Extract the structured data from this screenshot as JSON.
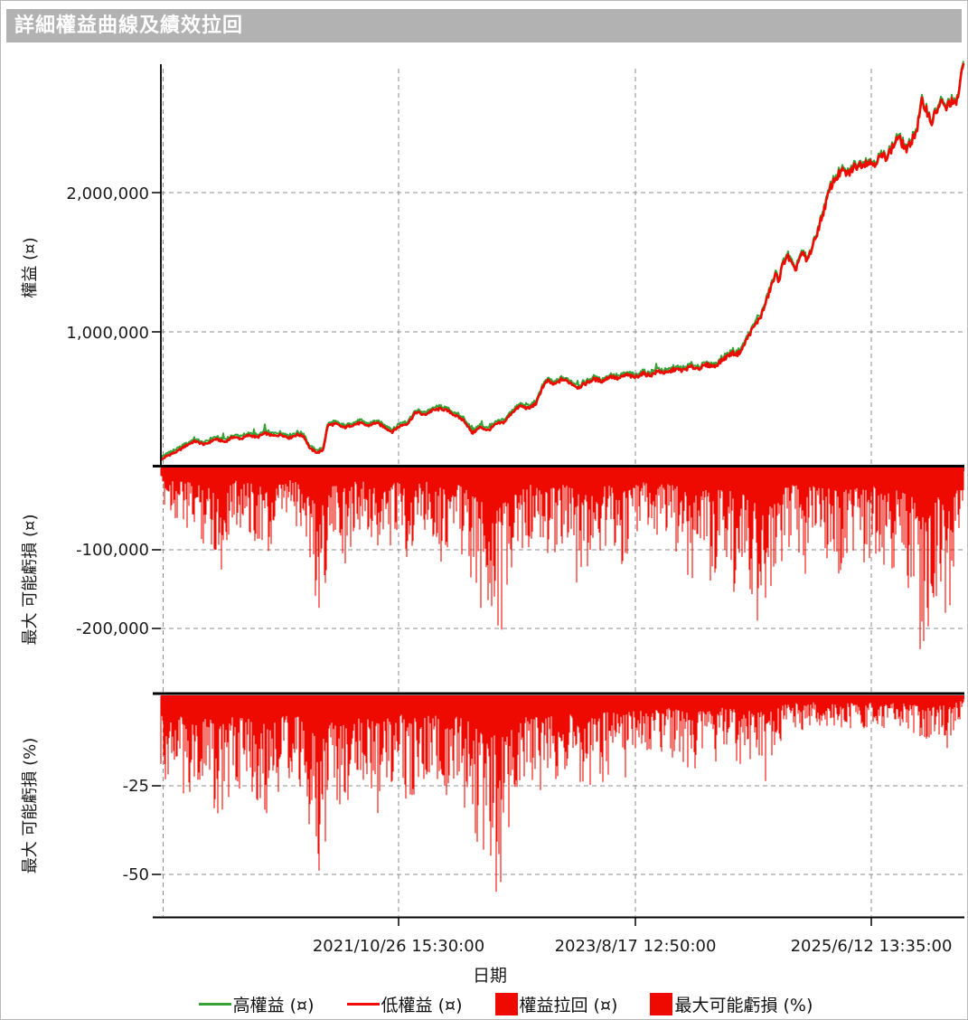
{
  "window": {
    "title": "詳細權益曲線及績效拉回"
  },
  "colors": {
    "red": "#ee0a00",
    "green": "#37a337",
    "grid": "#8c8c8c",
    "axis": "#000000",
    "titlebar_bg": "#b2b2b2",
    "titlebar_text": "#ffffff"
  },
  "chart_data": {
    "type": "area",
    "title": "詳細權益曲線及績效拉回",
    "xlabel": "日期",
    "grid": "dashed",
    "legend_position": "bottom",
    "xticks": [
      {
        "t": 0.296,
        "label": "2021/10/26 15:30:00"
      },
      {
        "t": 0.591,
        "label": "2023/8/17 12:50:00"
      },
      {
        "t": 0.885,
        "label": "2025/6/12 13:35:00"
      }
    ],
    "panels": [
      {
        "id": "equity",
        "type": "line",
        "ylabel": "權益 (¤)",
        "ylim": [
          0,
          2950000
        ],
        "yticks": [
          {
            "value": 2000000,
            "label": "2,000,000"
          },
          {
            "value": 1000000,
            "label": "1,000,000"
          }
        ],
        "series": [
          {
            "name": "高權益 (¤)",
            "color": "#37a337"
          },
          {
            "name": "低權益 (¤)",
            "color": "#ee0a00"
          }
        ],
        "anchors": [
          [
            0.0,
            80000
          ],
          [
            0.008,
            110000
          ],
          [
            0.02,
            140000
          ],
          [
            0.032,
            185000
          ],
          [
            0.042,
            215000
          ],
          [
            0.055,
            190000
          ],
          [
            0.068,
            230000
          ],
          [
            0.08,
            210000
          ],
          [
            0.09,
            245000
          ],
          [
            0.1,
            232000
          ],
          [
            0.11,
            258000
          ],
          [
            0.12,
            242000
          ],
          [
            0.13,
            272000
          ],
          [
            0.14,
            252000
          ],
          [
            0.15,
            262000
          ],
          [
            0.16,
            238000
          ],
          [
            0.17,
            262000
          ],
          [
            0.178,
            250000
          ],
          [
            0.186,
            160000
          ],
          [
            0.195,
            132000
          ],
          [
            0.202,
            150000
          ],
          [
            0.208,
            330000
          ],
          [
            0.218,
            338000
          ],
          [
            0.228,
            312000
          ],
          [
            0.238,
            330000
          ],
          [
            0.248,
            345000
          ],
          [
            0.258,
            325000
          ],
          [
            0.268,
            348000
          ],
          [
            0.278,
            318000
          ],
          [
            0.288,
            282000
          ],
          [
            0.298,
            325000
          ],
          [
            0.308,
            345000
          ],
          [
            0.318,
            425000
          ],
          [
            0.328,
            402000
          ],
          [
            0.338,
            435000
          ],
          [
            0.35,
            448000
          ],
          [
            0.36,
            425000
          ],
          [
            0.368,
            395000
          ],
          [
            0.378,
            362000
          ],
          [
            0.388,
            272000
          ],
          [
            0.398,
            315000
          ],
          [
            0.408,
            292000
          ],
          [
            0.418,
            338000
          ],
          [
            0.428,
            352000
          ],
          [
            0.438,
            425000
          ],
          [
            0.448,
            468000
          ],
          [
            0.458,
            448000
          ],
          [
            0.468,
            488000
          ],
          [
            0.475,
            600000
          ],
          [
            0.482,
            648000
          ],
          [
            0.49,
            620000
          ],
          [
            0.5,
            660000
          ],
          [
            0.51,
            635000
          ],
          [
            0.52,
            600000
          ],
          [
            0.53,
            632000
          ],
          [
            0.54,
            660000
          ],
          [
            0.55,
            645000
          ],
          [
            0.56,
            682000
          ],
          [
            0.57,
            662000
          ],
          [
            0.58,
            692000
          ],
          [
            0.59,
            672000
          ],
          [
            0.6,
            700000
          ],
          [
            0.61,
            688000
          ],
          [
            0.62,
            718000
          ],
          [
            0.63,
            702000
          ],
          [
            0.64,
            732000
          ],
          [
            0.65,
            722000
          ],
          [
            0.66,
            748000
          ],
          [
            0.67,
            738000
          ],
          [
            0.68,
            762000
          ],
          [
            0.69,
            752000
          ],
          [
            0.7,
            800000
          ],
          [
            0.706,
            825000
          ],
          [
            0.712,
            848000
          ],
          [
            0.718,
            838000
          ],
          [
            0.724,
            872000
          ],
          [
            0.73,
            948000
          ],
          [
            0.736,
            1010000
          ],
          [
            0.742,
            1062000
          ],
          [
            0.748,
            1118000
          ],
          [
            0.754,
            1212000
          ],
          [
            0.76,
            1322000
          ],
          [
            0.766,
            1408000
          ],
          [
            0.77,
            1372000
          ],
          [
            0.775,
            1482000
          ],
          [
            0.78,
            1552000
          ],
          [
            0.785,
            1498000
          ],
          [
            0.79,
            1432000
          ],
          [
            0.795,
            1522000
          ],
          [
            0.8,
            1562000
          ],
          [
            0.805,
            1505000
          ],
          [
            0.81,
            1585000
          ],
          [
            0.815,
            1658000
          ],
          [
            0.82,
            1758000
          ],
          [
            0.825,
            1852000
          ],
          [
            0.83,
            1952000
          ],
          [
            0.835,
            2048000
          ],
          [
            0.84,
            2098000
          ],
          [
            0.848,
            2152000
          ],
          [
            0.856,
            2132000
          ],
          [
            0.864,
            2185000
          ],
          [
            0.872,
            2205000
          ],
          [
            0.88,
            2222000
          ],
          [
            0.888,
            2208000
          ],
          [
            0.896,
            2252000
          ],
          [
            0.904,
            2262000
          ],
          [
            0.912,
            2325000
          ],
          [
            0.918,
            2398000
          ],
          [
            0.924,
            2352000
          ],
          [
            0.93,
            2302000
          ],
          [
            0.936,
            2385000
          ],
          [
            0.942,
            2452000
          ],
          [
            0.948,
            2648000
          ],
          [
            0.954,
            2598000
          ],
          [
            0.96,
            2502000
          ],
          [
            0.966,
            2582000
          ],
          [
            0.972,
            2648000
          ],
          [
            0.978,
            2602000
          ],
          [
            0.984,
            2655000
          ],
          [
            0.99,
            2622000
          ],
          [
            0.994,
            2718000
          ],
          [
            0.997,
            2820000
          ],
          [
            1.0,
            2920000
          ]
        ]
      },
      {
        "id": "drawdown_currency",
        "type": "area",
        "ylabel": "最大 可能虧損 (¤)",
        "ylim": [
          -290000,
          0
        ],
        "yticks": [
          {
            "value": -100000,
            "label": "-100,000"
          },
          {
            "value": -200000,
            "label": "-200,000"
          }
        ],
        "series_name": "權益拉回 (¤)",
        "color": "#ee0a00",
        "envelope": [
          [
            0.0,
            45000
          ],
          [
            0.02,
            70000
          ],
          [
            0.04,
            88000
          ],
          [
            0.06,
            105000
          ],
          [
            0.075,
            135000
          ],
          [
            0.09,
            70000
          ],
          [
            0.105,
            85000
          ],
          [
            0.12,
            95000
          ],
          [
            0.135,
            145000
          ],
          [
            0.15,
            85000
          ],
          [
            0.165,
            65000
          ],
          [
            0.18,
            90000
          ],
          [
            0.19,
            165000
          ],
          [
            0.197,
            225000
          ],
          [
            0.205,
            150000
          ],
          [
            0.215,
            100000
          ],
          [
            0.23,
            115000
          ],
          [
            0.245,
            65000
          ],
          [
            0.26,
            85000
          ],
          [
            0.272,
            140000
          ],
          [
            0.285,
            95000
          ],
          [
            0.3,
            80000
          ],
          [
            0.31,
            135000
          ],
          [
            0.325,
            75000
          ],
          [
            0.34,
            90000
          ],
          [
            0.355,
            115000
          ],
          [
            0.37,
            95000
          ],
          [
            0.385,
            140000
          ],
          [
            0.395,
            180000
          ],
          [
            0.405,
            210000
          ],
          [
            0.415,
            175000
          ],
          [
            0.418,
            228000
          ],
          [
            0.43,
            195000
          ],
          [
            0.44,
            160000
          ],
          [
            0.45,
            120000
          ],
          [
            0.46,
            95000
          ],
          [
            0.475,
            130000
          ],
          [
            0.49,
            110000
          ],
          [
            0.505,
            90000
          ],
          [
            0.52,
            140000
          ],
          [
            0.53,
            155000
          ],
          [
            0.545,
            120000
          ],
          [
            0.56,
            95000
          ],
          [
            0.575,
            130000
          ],
          [
            0.59,
            100000
          ],
          [
            0.6,
            75000
          ],
          [
            0.615,
            105000
          ],
          [
            0.63,
            85000
          ],
          [
            0.645,
            110000
          ],
          [
            0.66,
            150000
          ],
          [
            0.675,
            110000
          ],
          [
            0.69,
            135000
          ],
          [
            0.7,
            115000
          ],
          [
            0.715,
            140000
          ],
          [
            0.73,
            160000
          ],
          [
            0.745,
            200000
          ],
          [
            0.755,
            245000
          ],
          [
            0.765,
            185000
          ],
          [
            0.775,
            120000
          ],
          [
            0.79,
            95000
          ],
          [
            0.8,
            125000
          ],
          [
            0.815,
            95000
          ],
          [
            0.83,
            115000
          ],
          [
            0.845,
            135000
          ],
          [
            0.86,
            105000
          ],
          [
            0.875,
            125000
          ],
          [
            0.89,
            105000
          ],
          [
            0.9,
            145000
          ],
          [
            0.915,
            125000
          ],
          [
            0.93,
            150000
          ],
          [
            0.945,
            195000
          ],
          [
            0.955,
            272000
          ],
          [
            0.965,
            160000
          ],
          [
            0.975,
            185000
          ],
          [
            0.982,
            250000
          ],
          [
            0.99,
            120000
          ],
          [
            1.0,
            70000
          ]
        ]
      },
      {
        "id": "drawdown_percent",
        "type": "area",
        "ylabel": "最大 可能虧損 (%)",
        "ylim": [
          -61,
          0
        ],
        "yticks": [
          {
            "value": -25,
            "label": "-25"
          },
          {
            "value": -50,
            "label": "-50"
          }
        ],
        "series_name": "最大可能虧損 (%)",
        "color": "#ee0a00",
        "envelope": [
          [
            0.0,
            26
          ],
          [
            0.015,
            20
          ],
          [
            0.03,
            30
          ],
          [
            0.05,
            24
          ],
          [
            0.065,
            32
          ],
          [
            0.078,
            36
          ],
          [
            0.09,
            24
          ],
          [
            0.105,
            28
          ],
          [
            0.12,
            30
          ],
          [
            0.135,
            39
          ],
          [
            0.15,
            27
          ],
          [
            0.165,
            23
          ],
          [
            0.18,
            30
          ],
          [
            0.19,
            45
          ],
          [
            0.197,
            52
          ],
          [
            0.205,
            42
          ],
          [
            0.215,
            32
          ],
          [
            0.23,
            34
          ],
          [
            0.245,
            22
          ],
          [
            0.26,
            26
          ],
          [
            0.272,
            36
          ],
          [
            0.285,
            27
          ],
          [
            0.3,
            24
          ],
          [
            0.31,
            34
          ],
          [
            0.325,
            21
          ],
          [
            0.34,
            24
          ],
          [
            0.355,
            28
          ],
          [
            0.37,
            25
          ],
          [
            0.385,
            33
          ],
          [
            0.395,
            44
          ],
          [
            0.405,
            52
          ],
          [
            0.415,
            48
          ],
          [
            0.418,
            60
          ],
          [
            0.428,
            50
          ],
          [
            0.44,
            40
          ],
          [
            0.45,
            30
          ],
          [
            0.46,
            24
          ],
          [
            0.475,
            30
          ],
          [
            0.49,
            25
          ],
          [
            0.505,
            20
          ],
          [
            0.52,
            28
          ],
          [
            0.53,
            30
          ],
          [
            0.545,
            24
          ],
          [
            0.56,
            19
          ],
          [
            0.575,
            24
          ],
          [
            0.59,
            18
          ],
          [
            0.6,
            14
          ],
          [
            0.615,
            18
          ],
          [
            0.63,
            15
          ],
          [
            0.645,
            18
          ],
          [
            0.66,
            23
          ],
          [
            0.675,
            16
          ],
          [
            0.69,
            19
          ],
          [
            0.7,
            15
          ],
          [
            0.715,
            17
          ],
          [
            0.73,
            18
          ],
          [
            0.745,
            20
          ],
          [
            0.755,
            22
          ],
          [
            0.765,
            17
          ],
          [
            0.775,
            11
          ],
          [
            0.79,
            9
          ],
          [
            0.8,
            11
          ],
          [
            0.815,
            8
          ],
          [
            0.83,
            10
          ],
          [
            0.845,
            11
          ],
          [
            0.86,
            9
          ],
          [
            0.875,
            10
          ],
          [
            0.89,
            8
          ],
          [
            0.9,
            10
          ],
          [
            0.915,
            9
          ],
          [
            0.93,
            10
          ],
          [
            0.945,
            12
          ],
          [
            0.955,
            16
          ],
          [
            0.965,
            10
          ],
          [
            0.975,
            11
          ],
          [
            0.982,
            14
          ],
          [
            0.99,
            8
          ],
          [
            1.0,
            6
          ]
        ]
      }
    ]
  },
  "legend": {
    "items": [
      {
        "label": "高權益 (¤)",
        "swatch": "line",
        "color": "#37a337"
      },
      {
        "label": "低權益 (¤)",
        "swatch": "line",
        "color": "#ee0a00"
      },
      {
        "label": "權益拉回 (¤)",
        "swatch": "box",
        "color": "#ee0a00"
      },
      {
        "label": "最大可能虧損 (%)",
        "swatch": "box",
        "color": "#ee0a00"
      }
    ]
  }
}
